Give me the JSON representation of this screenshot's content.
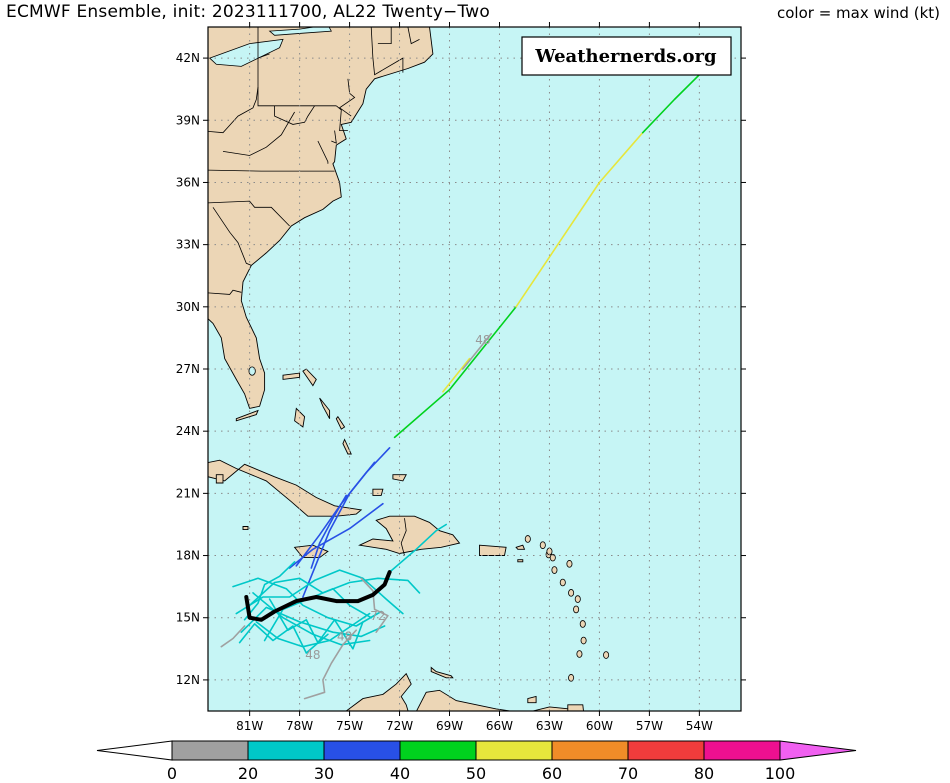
{
  "header": {
    "title": "ECMWF Ensemble, init: 2023111700, AL22 Twenty−Two",
    "subtitle": "color = max wind (kt)"
  },
  "brand": "Weathernerds.org",
  "map": {
    "lat_range": [
      10.5,
      43.5
    ],
    "lon_range": [
      -83.5,
      -51.5
    ],
    "lat_ticks": [
      {
        "value": 42,
        "label": "42N"
      },
      {
        "value": 39,
        "label": "39N"
      },
      {
        "value": 36,
        "label": "36N"
      },
      {
        "value": 33,
        "label": "33N"
      },
      {
        "value": 30,
        "label": "30N"
      },
      {
        "value": 27,
        "label": "27N"
      },
      {
        "value": 24,
        "label": "24N"
      },
      {
        "value": 21,
        "label": "21N"
      },
      {
        "value": 18,
        "label": "18N"
      },
      {
        "value": 15,
        "label": "15N"
      },
      {
        "value": 12,
        "label": "12N"
      }
    ],
    "lon_ticks": [
      {
        "value": -81,
        "label": "81W"
      },
      {
        "value": -78,
        "label": "78W"
      },
      {
        "value": -75,
        "label": "75W"
      },
      {
        "value": -72,
        "label": "72W"
      },
      {
        "value": -69,
        "label": "69W"
      },
      {
        "value": -66,
        "label": "66W"
      },
      {
        "value": -63,
        "label": "63W"
      },
      {
        "value": -60,
        "label": "60W"
      },
      {
        "value": -57,
        "label": "57W"
      },
      {
        "value": -54,
        "label": "54W"
      }
    ],
    "ocean_color": "#c6f5f5",
    "land_color": "#ecd6b6",
    "grid": "dotted"
  },
  "colorbar": {
    "bins": [
      {
        "from": 0,
        "to": 20,
        "color": "#a0a0a0"
      },
      {
        "from": 20,
        "to": 30,
        "color": "#00c8c8"
      },
      {
        "from": 30,
        "to": 40,
        "color": "#2850e6"
      },
      {
        "from": 40,
        "to": 50,
        "color": "#00d21e"
      },
      {
        "from": 50,
        "to": 60,
        "color": "#e6e63c"
      },
      {
        "from": 60,
        "to": 70,
        "color": "#f08c28"
      },
      {
        "from": 70,
        "to": 80,
        "color": "#f03c3c"
      },
      {
        "from": 80,
        "to": 100,
        "color": "#ee1090"
      }
    ],
    "under_color": "#ffffff",
    "over_color": "#f060f0",
    "labels": [
      "0",
      "20",
      "30",
      "40",
      "50",
      "60",
      "70",
      "80",
      "100"
    ]
  },
  "chart_data": {
    "type": "map-tracks",
    "mean_track": {
      "color": "#000000",
      "points": [
        [
          -81.2,
          16.0
        ],
        [
          -81.0,
          15.0
        ],
        [
          -80.3,
          14.9
        ],
        [
          -79.5,
          15.3
        ],
        [
          -78.2,
          15.8
        ],
        [
          -77.0,
          16.0
        ],
        [
          -75.8,
          15.8
        ],
        [
          -74.5,
          15.8
        ],
        [
          -73.6,
          16.1
        ],
        [
          -72.9,
          16.6
        ],
        [
          -72.6,
          17.2
        ]
      ]
    },
    "tracks": [
      {
        "wind_bin": 40,
        "points": [
          [
            -72.3,
            23.7
          ],
          [
            -69.0,
            26.0
          ],
          [
            -67.2,
            27.8
          ],
          [
            -65.0,
            30.0
          ]
        ]
      },
      {
        "wind_bin": 50,
        "points": [
          [
            -65.0,
            30.0
          ],
          [
            -62.5,
            33.0
          ],
          [
            -60.0,
            36.0
          ],
          [
            -57.4,
            38.4
          ]
        ]
      },
      {
        "wind_bin": 40,
        "points": [
          [
            -57.4,
            38.4
          ],
          [
            -55.5,
            40.0
          ],
          [
            -54.0,
            41.2
          ]
        ]
      },
      {
        "wind_bin": 50,
        "points": [
          [
            -69.4,
            25.9
          ],
          [
            -67.8,
            27.5
          ]
        ]
      },
      {
        "wind_bin": 0,
        "points": [
          [
            -68.2,
            27.0
          ],
          [
            -67.1,
            28.1
          ],
          [
            -66.5,
            28.7
          ]
        ]
      },
      {
        "wind_bin": 30,
        "points": [
          [
            -72.6,
            23.2
          ],
          [
            -74.0,
            22.0
          ],
          [
            -75.5,
            20.5
          ],
          [
            -76.8,
            19.0
          ],
          [
            -78.2,
            17.5
          ]
        ]
      },
      {
        "wind_bin": 30,
        "points": [
          [
            -73.5,
            22.5
          ],
          [
            -75.0,
            21.0
          ],
          [
            -76.2,
            19.2
          ],
          [
            -77.0,
            17.6
          ],
          [
            -77.8,
            16.0
          ]
        ]
      },
      {
        "wind_bin": 30,
        "points": [
          [
            -73.0,
            20.5
          ],
          [
            -75.0,
            19.3
          ],
          [
            -77.2,
            18.3
          ],
          [
            -78.6,
            17.4
          ]
        ]
      },
      {
        "wind_bin": 30,
        "points": [
          [
            -75.2,
            20.9
          ],
          [
            -76.0,
            19.8
          ],
          [
            -76.8,
            18.6
          ],
          [
            -77.3,
            17.4
          ]
        ]
      },
      {
        "wind_bin": 20,
        "points": [
          [
            -82.0,
            16.5
          ],
          [
            -80.5,
            16.9
          ],
          [
            -78.8,
            16.4
          ],
          [
            -77.8,
            15.6
          ],
          [
            -76.3,
            15.0
          ],
          [
            -74.6,
            14.6
          ],
          [
            -73.1,
            15.3
          ]
        ]
      },
      {
        "wind_bin": 20,
        "points": [
          [
            -81.5,
            14.3
          ],
          [
            -80.0,
            15.5
          ],
          [
            -78.0,
            14.8
          ],
          [
            -76.0,
            14.3
          ],
          [
            -74.3,
            14.1
          ],
          [
            -72.9,
            14.6
          ]
        ]
      },
      {
        "wind_bin": 20,
        "points": [
          [
            -80.8,
            16.2
          ],
          [
            -79.0,
            15.0
          ],
          [
            -77.2,
            14.2
          ],
          [
            -75.5,
            13.7
          ],
          [
            -73.8,
            13.9
          ]
        ]
      },
      {
        "wind_bin": 20,
        "points": [
          [
            -81.0,
            15.6
          ],
          [
            -79.5,
            16.7
          ],
          [
            -78.0,
            16.9
          ],
          [
            -76.6,
            16.2
          ],
          [
            -75.0,
            16.7
          ],
          [
            -73.3,
            16.9
          ],
          [
            -71.5,
            16.8
          ],
          [
            -70.8,
            16.2
          ]
        ]
      },
      {
        "wind_bin": 20,
        "points": [
          [
            -80.6,
            14.8
          ],
          [
            -79.3,
            14.0
          ],
          [
            -77.8,
            13.6
          ],
          [
            -76.2,
            13.9
          ],
          [
            -74.9,
            14.6
          ],
          [
            -73.8,
            15.2
          ]
        ]
      },
      {
        "wind_bin": 20,
        "points": [
          [
            -81.8,
            15.2
          ],
          [
            -80.2,
            16.0
          ],
          [
            -78.6,
            16.0
          ],
          [
            -77.1,
            16.8
          ],
          [
            -75.6,
            17.3
          ],
          [
            -74.2,
            16.9
          ],
          [
            -72.8,
            15.9
          ],
          [
            -71.8,
            15.2
          ]
        ]
      },
      {
        "wind_bin": 20,
        "points": [
          [
            -80.1,
            13.9
          ],
          [
            -79.0,
            15.4
          ],
          [
            -77.5,
            15.9
          ],
          [
            -76.0,
            16.4
          ],
          [
            -75.0,
            15.6
          ],
          [
            -73.7,
            15.0
          ]
        ]
      },
      {
        "wind_bin": 20,
        "points": [
          [
            -72.6,
            17.2
          ],
          [
            -71.0,
            18.3
          ],
          [
            -69.8,
            19.2
          ],
          [
            -69.2,
            19.5
          ]
        ]
      },
      {
        "wind_bin": 20,
        "points": [
          [
            -81.3,
            14.9
          ],
          [
            -80.5,
            15.7
          ],
          [
            -80.1,
            16.6
          ],
          [
            -79.2,
            17.0
          ],
          [
            -78.3,
            17.7
          ]
        ]
      },
      {
        "wind_bin": 20,
        "points": [
          [
            -79.8,
            15.9
          ],
          [
            -78.7,
            14.4
          ],
          [
            -77.6,
            14.9
          ],
          [
            -76.9,
            13.8
          ],
          [
            -75.9,
            14.9
          ],
          [
            -74.8,
            13.5
          ],
          [
            -74.2,
            14.8
          ]
        ]
      },
      {
        "wind_bin": 20,
        "points": [
          [
            -81.6,
            13.8
          ],
          [
            -80.7,
            14.7
          ],
          [
            -79.6,
            13.9
          ],
          [
            -78.4,
            14.6
          ],
          [
            -77.6,
            13.3
          ],
          [
            -76.3,
            14.2
          ]
        ]
      },
      {
        "wind_bin": 0,
        "points": [
          [
            -74.6,
            14.4
          ],
          [
            -75.4,
            13.7
          ],
          [
            -76.1,
            12.8
          ],
          [
            -76.6,
            12.0
          ],
          [
            -76.5,
            11.4
          ],
          [
            -77.7,
            11.1
          ]
        ]
      },
      {
        "wind_bin": 0,
        "points": [
          [
            -74.3,
            16.9
          ],
          [
            -73.6,
            16.3
          ],
          [
            -73.5,
            15.4
          ],
          [
            -72.7,
            15.1
          ],
          [
            -73.4,
            14.3
          ]
        ]
      },
      {
        "wind_bin": 0,
        "points": [
          [
            -81.3,
            14.6
          ],
          [
            -82.0,
            14.0
          ],
          [
            -82.7,
            13.6
          ]
        ]
      }
    ],
    "labels": [
      {
        "text": "48",
        "lon": -67.0,
        "lat": 28.2
      },
      {
        "text": "48",
        "lon": -77.2,
        "lat": 13.0
      },
      {
        "text": "48",
        "lon": -75.3,
        "lat": 13.9
      },
      {
        "text": "72",
        "lon": -73.3,
        "lat": 14.9
      }
    ]
  }
}
